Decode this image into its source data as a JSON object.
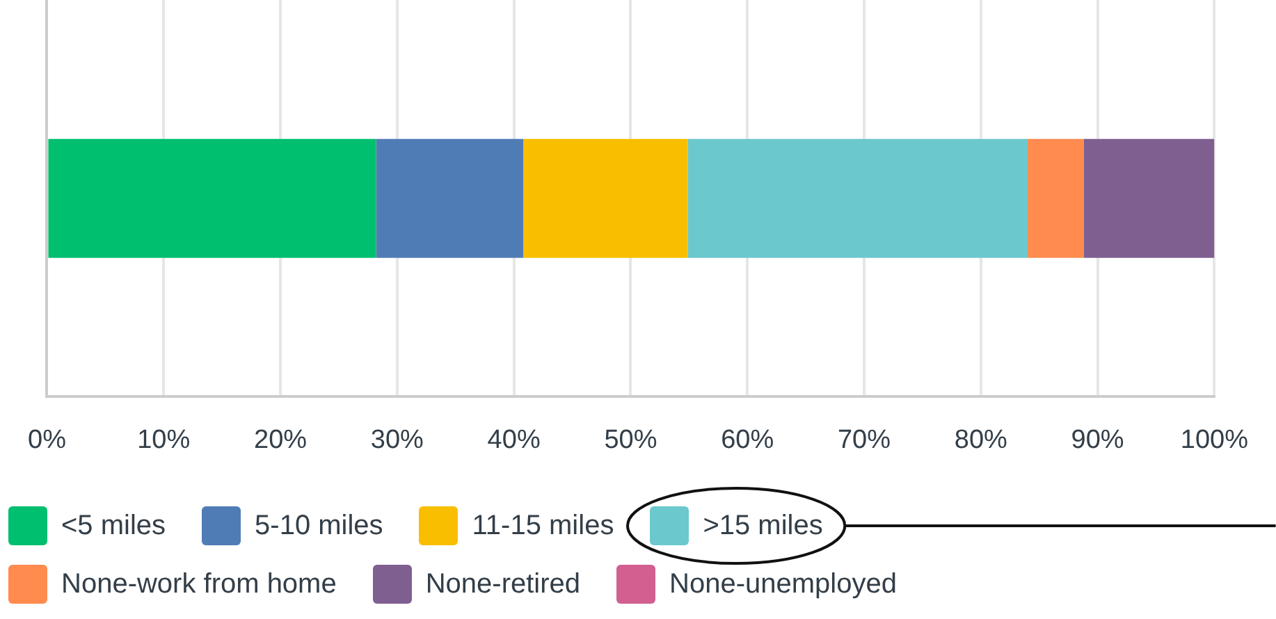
{
  "chart_data": {
    "type": "bar",
    "orientation": "horizontal",
    "stacked": true,
    "categories": [
      null
    ],
    "series": [
      {
        "name": "<5 miles",
        "color": "#00bf6f",
        "values": [
          28.2
        ]
      },
      {
        "name": "5-10 miles",
        "color": "#507cb6",
        "values": [
          12.6
        ]
      },
      {
        "name": "11-15 miles",
        "color": "#f9be00",
        "values": [
          14.1
        ]
      },
      {
        "name": ">15 miles",
        "color": "#6bc8cd",
        "values": [
          29.1
        ]
      },
      {
        "name": "None-work from home",
        "color": "#ff8b4f",
        "values": [
          4.8
        ]
      },
      {
        "name": "None-retired",
        "color": "#7f5f90",
        "values": [
          11.2
        ]
      },
      {
        "name": "None-unemployed",
        "color": "#d25f90",
        "values": [
          0
        ]
      }
    ],
    "xlim": [
      0,
      100
    ],
    "xticks": [
      {
        "value": 0,
        "label": "0%"
      },
      {
        "value": 10,
        "label": "10%"
      },
      {
        "value": 20,
        "label": "20%"
      },
      {
        "value": 30,
        "label": "30%"
      },
      {
        "value": 40,
        "label": "40%"
      },
      {
        "value": 50,
        "label": "50%"
      },
      {
        "value": 60,
        "label": "60%"
      },
      {
        "value": 70,
        "label": "70%"
      },
      {
        "value": 80,
        "label": "80%"
      },
      {
        "value": 90,
        "label": "90%"
      },
      {
        "value": 100,
        "label": "100%"
      }
    ],
    "grid": "x",
    "legend": "bottom"
  }
}
